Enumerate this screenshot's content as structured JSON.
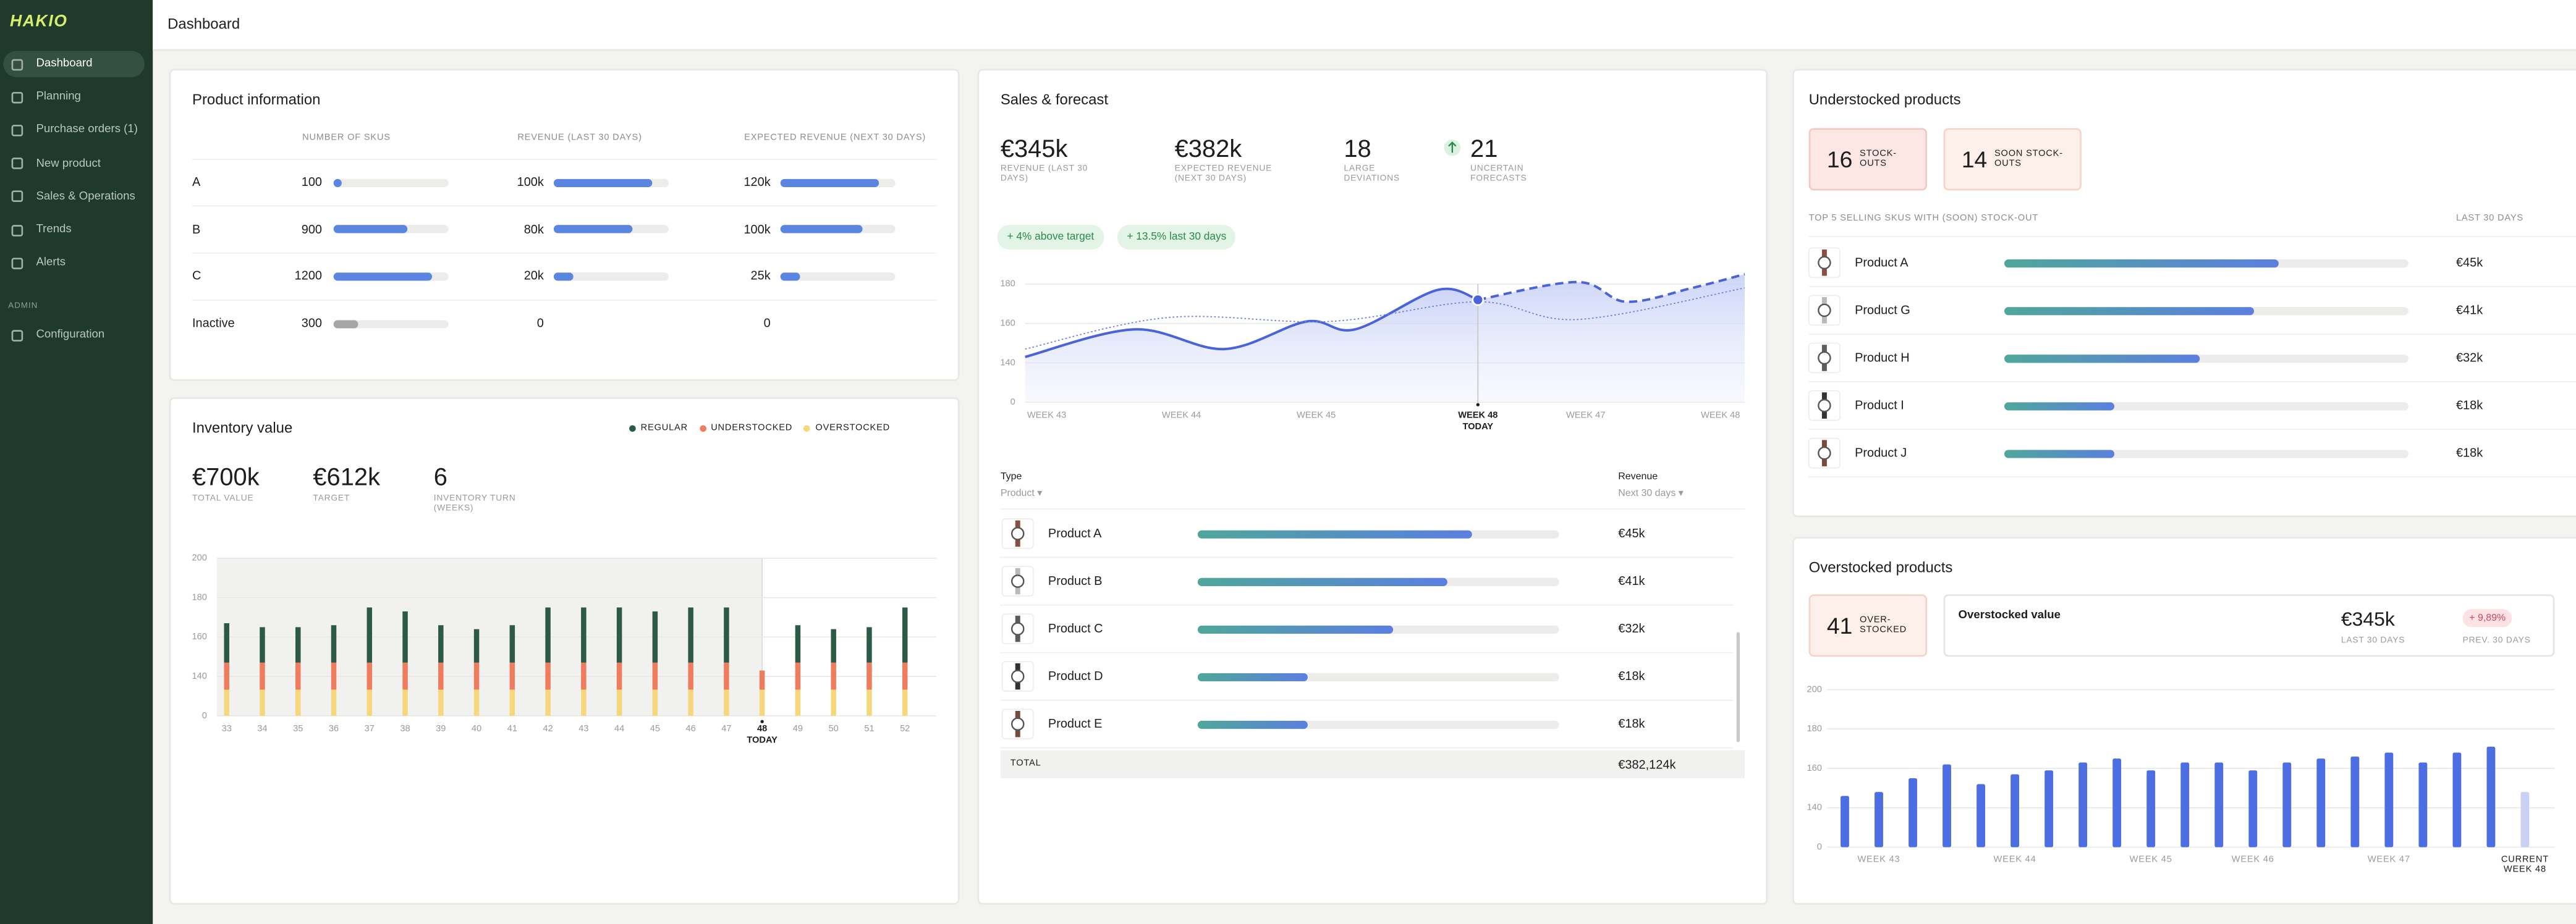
{
  "sidebar": {
    "logo": "HAKIO",
    "nav": [
      "Dashboard",
      "Planning",
      "Purchase orders (1)",
      "New product",
      "Sales & Operations",
      "Trends",
      "Alerts"
    ],
    "section": "ADMIN",
    "admin_nav": [
      "Configuration"
    ]
  },
  "header": {
    "title": "Dashboard"
  },
  "product_information": {
    "title": "Product information",
    "columns": [
      "NUMBER OF SKUS",
      "REVENUE (LAST 30 DAYS)",
      "EXPECTED REVENUE (NEXT 30 DAYS)"
    ],
    "rows": [
      {
        "name": "A",
        "skus": 100,
        "revenue": {
          "value": 100000,
          "label": "100k"
        },
        "expected_revenue": {
          "value": 120000,
          "label": "120k"
        },
        "color": "#5a86e2"
      },
      {
        "name": "B",
        "skus": 900,
        "revenue": {
          "value": 80000,
          "label": "80k"
        },
        "expected_revenue": {
          "value": 100000,
          "label": "100k"
        },
        "color": "#5a86e2"
      },
      {
        "name": "C",
        "skus": 1200,
        "revenue": {
          "value": 20000,
          "label": "20k"
        },
        "expected_revenue": {
          "value": 25000,
          "label": "25k"
        },
        "color": "#5a86e2"
      },
      {
        "name": "Inactive",
        "skus": 300,
        "revenue": 0,
        "expected_revenue": 0,
        "color": "#a5a5a5"
      }
    ]
  },
  "inventory_value": {
    "title": "Inventory value",
    "kpis": [
      {
        "value": "€700k",
        "label": "TOTAL VALUE"
      },
      {
        "value": "€612k",
        "label": "TARGET"
      },
      {
        "value": 6,
        "label": "INVENTORY TURN (WEEKS)"
      }
    ]
  },
  "sales_forecast": {
    "title": "Sales & forecast",
    "kpis": [
      {
        "value": "€345k",
        "label": "REVENUE (LAST 30 DAYS)"
      },
      {
        "value": "€382k",
        "label": "EXPECTED REVENUE (NEXT 30 DAYS)"
      },
      {
        "value": 18,
        "label": "LARGE DEVIATIONS"
      },
      {
        "value": 21,
        "label": "UNCERTAIN FORECASTS"
      }
    ],
    "badges": [
      "+ 4% above target",
      "+ 13.5% last 30 days"
    ],
    "table": {
      "columns": [
        {
          "title": "Type",
          "filter": "Product ▾"
        },
        {
          "title": "Revenue",
          "filter": "Next 30 days ▾"
        }
      ],
      "rows": [
        {
          "name": "Product A",
          "revenue": {
            "value": 45000,
            "label": "€45k"
          }
        },
        {
          "name": "Product B",
          "revenue": {
            "value": 41000,
            "label": "€41k"
          }
        },
        {
          "name": "Product C",
          "revenue": {
            "value": 32000,
            "label": "€32k"
          }
        },
        {
          "name": "Product D",
          "revenue": {
            "value": 18000,
            "label": "€18k"
          }
        },
        {
          "name": "Product E",
          "revenue": {
            "value": 18000,
            "label": "€18k"
          }
        }
      ],
      "total": {
        "label": "TOTAL",
        "value": "€382,124k"
      }
    }
  },
  "understocked_products": {
    "title": "Understocked products",
    "badges": [
      {
        "value": 16,
        "label": "STOCK-OUTS"
      },
      {
        "value": 14,
        "label": "SOON STOCK-OUTS"
      }
    ],
    "columns": [
      "TOP 5 SELLING SKUS WITH (SOON) STOCK-OUT",
      "LAST 30 DAYS"
    ],
    "rows": [
      {
        "name": "Product A",
        "revenue": {
          "value": 45000,
          "label": "€45k"
        }
      },
      {
        "name": "Product G",
        "revenue": {
          "value": 41000,
          "label": "€41k"
        }
      },
      {
        "name": "Product H",
        "revenue": {
          "value": 32000,
          "label": "€32k"
        }
      },
      {
        "name": "Product I",
        "revenue": {
          "value": 18000,
          "label": "€18k"
        }
      },
      {
        "name": "Product J",
        "revenue": {
          "value": 18000,
          "label": "€18k"
        }
      }
    ]
  },
  "overstocked_products": {
    "title": "Overstocked products",
    "badge": {
      "value": 41,
      "label": "OVER-STOCKED"
    },
    "summary": {
      "title": "Overstocked value",
      "value": "€345k",
      "value_label": "LAST 30 DAYS",
      "change": "+ 9,89%",
      "change_label": "PREV. 30 DAYS"
    }
  },
  "chart_data": [
    {
      "type": "stacked_bar",
      "yscale": "broken",
      "grid": true,
      "legend": "top-right",
      "categories": [
        "33",
        "34",
        "35",
        "36",
        "37",
        "38",
        "39",
        "40",
        "41",
        "42",
        "43",
        "44",
        "45",
        "46",
        "47",
        "48",
        "49",
        "50",
        "51",
        "52"
      ],
      "series": [
        {
          "name": "REGULAR",
          "color": "#2d5a47",
          "values": [
            20,
            18,
            18,
            19,
            28,
            26,
            19,
            17,
            19,
            28,
            28,
            28,
            26,
            28,
            28,
            0,
            19,
            17,
            18,
            28
          ]
        },
        {
          "name": "UNDERSTOCKED",
          "color": "#ef7c5c",
          "values": [
            54,
            54,
            54,
            54,
            54,
            54,
            54,
            54,
            54,
            54,
            54,
            54,
            54,
            54,
            54,
            50,
            54,
            54,
            54,
            54
          ]
        },
        {
          "name": "OVERSTOCKED",
          "color": "#f6d77c",
          "values": [
            93,
            93,
            93,
            93,
            93,
            93,
            93,
            93,
            93,
            93,
            93,
            93,
            93,
            93,
            93,
            93,
            93,
            93,
            93,
            93
          ]
        }
      ],
      "ylim": [
        0,
        200
      ],
      "yticks": [
        0,
        140,
        160,
        180,
        200
      ],
      "annotation": {
        "category": "48",
        "label": "TODAY"
      }
    },
    {
      "type": "line",
      "yscale": "broken",
      "grid": true,
      "xlim": [
        -0.16,
        5.18
      ],
      "xticks": [
        {
          "value": 0,
          "label": "WEEK 43"
        },
        {
          "value": 1,
          "label": "WEEK 44"
        },
        {
          "value": 2,
          "label": "WEEK 45"
        },
        {
          "value": 3.2,
          "label": "WEEK 48"
        },
        {
          "value": 4,
          "label": "WEEK 47"
        },
        {
          "value": 5,
          "label": "WEEK 48"
        }
      ],
      "ylim": [
        0,
        180
      ],
      "yticks": [
        0,
        140,
        160,
        180
      ],
      "annotation": {
        "x": 3.2,
        "label": "TODAY"
      },
      "series": [
        {
          "color": "#4a63d8",
          "style": "solid",
          "fill": true,
          "x": [
            -0.16,
            0.65,
            1.32,
            1.93,
            2.29,
            2.9,
            3.2
          ],
          "values": [
            143,
            157,
            147,
            161,
            157,
            177,
            172
          ]
        },
        {
          "color": "#4a63d8",
          "style": "dashed",
          "fill": true,
          "x": [
            3.2,
            3.94,
            4.3,
            4.79,
            5.18
          ],
          "values": [
            172,
            181,
            171,
            178,
            185
          ]
        },
        {
          "color": "#7083d6",
          "style": "dotted",
          "x": [
            -0.16,
            0.9,
            2.1,
            3.2,
            3.94,
            5.18
          ],
          "values": [
            147,
            163,
            161,
            171,
            162,
            178
          ]
        }
      ]
    },
    {
      "type": "bar",
      "yscale": "broken",
      "grid": true,
      "categories": [
        null,
        "WEEK 43",
        null,
        null,
        null,
        "WEEK 44",
        null,
        null,
        null,
        "WEEK 45",
        null,
        null,
        "WEEK 46",
        null,
        null,
        null,
        "WEEK 47",
        null,
        null,
        null,
        "CURRENT WEEK 48"
      ],
      "values": [
        146,
        148,
        155,
        162,
        152,
        157,
        159,
        163,
        165,
        159,
        163,
        163,
        159,
        163,
        165,
        166,
        168,
        163,
        168,
        171,
        148
      ],
      "colors": [
        "#4d6ee3",
        "#4d6ee3",
        "#4d6ee3",
        "#4d6ee3",
        "#4d6ee3",
        "#4d6ee3",
        "#4d6ee3",
        "#4d6ee3",
        "#4d6ee3",
        "#4d6ee3",
        "#4d6ee3",
        "#4d6ee3",
        "#4d6ee3",
        "#4d6ee3",
        "#4d6ee3",
        "#4d6ee3",
        "#4d6ee3",
        "#4d6ee3",
        "#4d6ee3",
        "#4d6ee3",
        "#c8d1f4"
      ],
      "ylim": [
        0,
        200
      ],
      "yticks": [
        0,
        140,
        160,
        180,
        200
      ]
    }
  ]
}
